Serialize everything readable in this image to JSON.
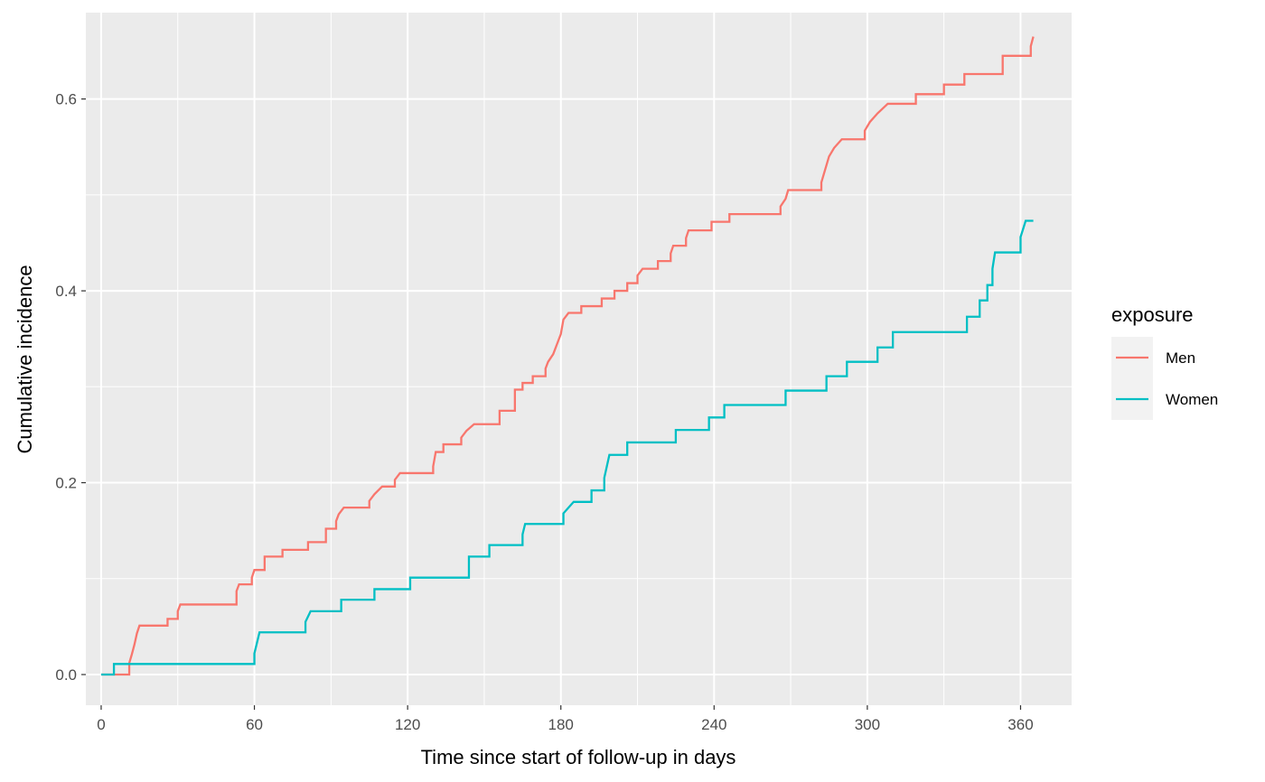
{
  "chart_data": {
    "type": "line",
    "step": true,
    "title": "",
    "xlabel": "Time since start of follow-up in days",
    "ylabel": "Cumulative incidence",
    "xlim": [
      -6,
      380
    ],
    "ylim": [
      -0.032,
      0.69
    ],
    "x_ticks": [
      0,
      60,
      120,
      180,
      240,
      300,
      360
    ],
    "x_tick_labels": [
      "0",
      "60",
      "120",
      "180",
      "240",
      "300",
      "360"
    ],
    "y_ticks": [
      0.0,
      0.2,
      0.4,
      0.6
    ],
    "y_tick_labels": [
      "0.0",
      "0.2",
      "0.4",
      "0.6"
    ],
    "grid": true,
    "background": "#EBEBEB",
    "legend": {
      "title": "exposure",
      "position": "right"
    },
    "series": [
      {
        "name": "Men",
        "color": "#F8766D",
        "points": [
          [
            0,
            0.0
          ],
          [
            11,
            0.0
          ],
          [
            11,
            0.012
          ],
          [
            12,
            0.021
          ],
          [
            13,
            0.031
          ],
          [
            14,
            0.043
          ],
          [
            15,
            0.051
          ],
          [
            26,
            0.051
          ],
          [
            26,
            0.058
          ],
          [
            30,
            0.058
          ],
          [
            30,
            0.066
          ],
          [
            31,
            0.073
          ],
          [
            53,
            0.073
          ],
          [
            53,
            0.087
          ],
          [
            54,
            0.094
          ],
          [
            59,
            0.094
          ],
          [
            59,
            0.101
          ],
          [
            60,
            0.109
          ],
          [
            64,
            0.109
          ],
          [
            64,
            0.123
          ],
          [
            71,
            0.123
          ],
          [
            71,
            0.13
          ],
          [
            81,
            0.13
          ],
          [
            81,
            0.138
          ],
          [
            88,
            0.138
          ],
          [
            88,
            0.152
          ],
          [
            92,
            0.152
          ],
          [
            92,
            0.16
          ],
          [
            93,
            0.167
          ],
          [
            95,
            0.174
          ],
          [
            105,
            0.174
          ],
          [
            105,
            0.181
          ],
          [
            107,
            0.188
          ],
          [
            110,
            0.196
          ],
          [
            115,
            0.196
          ],
          [
            115,
            0.203
          ],
          [
            117,
            0.21
          ],
          [
            130,
            0.21
          ],
          [
            130,
            0.217
          ],
          [
            131,
            0.232
          ],
          [
            134,
            0.232
          ],
          [
            134,
            0.24
          ],
          [
            141,
            0.24
          ],
          [
            141,
            0.247
          ],
          [
            143,
            0.254
          ],
          [
            146,
            0.261
          ],
          [
            156,
            0.261
          ],
          [
            156,
            0.275
          ],
          [
            162,
            0.275
          ],
          [
            162,
            0.297
          ],
          [
            165,
            0.297
          ],
          [
            165,
            0.304
          ],
          [
            169,
            0.304
          ],
          [
            169,
            0.311
          ],
          [
            174,
            0.311
          ],
          [
            174,
            0.319
          ],
          [
            175,
            0.326
          ],
          [
            177,
            0.334
          ],
          [
            179,
            0.348
          ],
          [
            180,
            0.355
          ],
          [
            181,
            0.37
          ],
          [
            183,
            0.377
          ],
          [
            188,
            0.377
          ],
          [
            188,
            0.384
          ],
          [
            196,
            0.384
          ],
          [
            196,
            0.392
          ],
          [
            201,
            0.392
          ],
          [
            201,
            0.4
          ],
          [
            206,
            0.4
          ],
          [
            206,
            0.408
          ],
          [
            210,
            0.408
          ],
          [
            210,
            0.416
          ],
          [
            212,
            0.423
          ],
          [
            218,
            0.423
          ],
          [
            218,
            0.431
          ],
          [
            223,
            0.431
          ],
          [
            223,
            0.439
          ],
          [
            224,
            0.447
          ],
          [
            229,
            0.447
          ],
          [
            229,
            0.455
          ],
          [
            230,
            0.463
          ],
          [
            239,
            0.463
          ],
          [
            239,
            0.472
          ],
          [
            246,
            0.472
          ],
          [
            246,
            0.48
          ],
          [
            266,
            0.48
          ],
          [
            266,
            0.488
          ],
          [
            268,
            0.496
          ],
          [
            269,
            0.505
          ],
          [
            282,
            0.505
          ],
          [
            282,
            0.513
          ],
          [
            283,
            0.522
          ],
          [
            284,
            0.531
          ],
          [
            285,
            0.54
          ],
          [
            287,
            0.549
          ],
          [
            290,
            0.558
          ],
          [
            299,
            0.558
          ],
          [
            299,
            0.567
          ],
          [
            301,
            0.576
          ],
          [
            304,
            0.585
          ],
          [
            308,
            0.595
          ],
          [
            319,
            0.595
          ],
          [
            319,
            0.605
          ],
          [
            330,
            0.605
          ],
          [
            330,
            0.615
          ],
          [
            338,
            0.615
          ],
          [
            338,
            0.626
          ],
          [
            353,
            0.626
          ],
          [
            353,
            0.645
          ],
          [
            364,
            0.645
          ],
          [
            364,
            0.655
          ],
          [
            365,
            0.665
          ]
        ]
      },
      {
        "name": "Women",
        "color": "#00BFC4",
        "points": [
          [
            0,
            0.0
          ],
          [
            5,
            0.0
          ],
          [
            5,
            0.011
          ],
          [
            60,
            0.011
          ],
          [
            60,
            0.022
          ],
          [
            61,
            0.033
          ],
          [
            62,
            0.044
          ],
          [
            80,
            0.044
          ],
          [
            80,
            0.055
          ],
          [
            82,
            0.066
          ],
          [
            94,
            0.066
          ],
          [
            94,
            0.078
          ],
          [
            107,
            0.078
          ],
          [
            107,
            0.089
          ],
          [
            121,
            0.089
          ],
          [
            121,
            0.101
          ],
          [
            144,
            0.101
          ],
          [
            144,
            0.123
          ],
          [
            152,
            0.123
          ],
          [
            152,
            0.135
          ],
          [
            165,
            0.135
          ],
          [
            165,
            0.146
          ],
          [
            166,
            0.157
          ],
          [
            181,
            0.157
          ],
          [
            181,
            0.168
          ],
          [
            185,
            0.18
          ],
          [
            192,
            0.18
          ],
          [
            192,
            0.192
          ],
          [
            197,
            0.192
          ],
          [
            197,
            0.205
          ],
          [
            199,
            0.229
          ],
          [
            206,
            0.229
          ],
          [
            206,
            0.242
          ],
          [
            225,
            0.242
          ],
          [
            225,
            0.255
          ],
          [
            238,
            0.255
          ],
          [
            238,
            0.268
          ],
          [
            244,
            0.268
          ],
          [
            244,
            0.281
          ],
          [
            268,
            0.281
          ],
          [
            268,
            0.296
          ],
          [
            284,
            0.296
          ],
          [
            284,
            0.311
          ],
          [
            292,
            0.311
          ],
          [
            292,
            0.326
          ],
          [
            304,
            0.326
          ],
          [
            304,
            0.341
          ],
          [
            310,
            0.341
          ],
          [
            310,
            0.357
          ],
          [
            339,
            0.357
          ],
          [
            339,
            0.373
          ],
          [
            344,
            0.373
          ],
          [
            344,
            0.39
          ],
          [
            347,
            0.39
          ],
          [
            347,
            0.406
          ],
          [
            349,
            0.406
          ],
          [
            349,
            0.423
          ],
          [
            350,
            0.44
          ],
          [
            360,
            0.44
          ],
          [
            360,
            0.456
          ],
          [
            362,
            0.473
          ],
          [
            365,
            0.473
          ]
        ]
      }
    ]
  }
}
